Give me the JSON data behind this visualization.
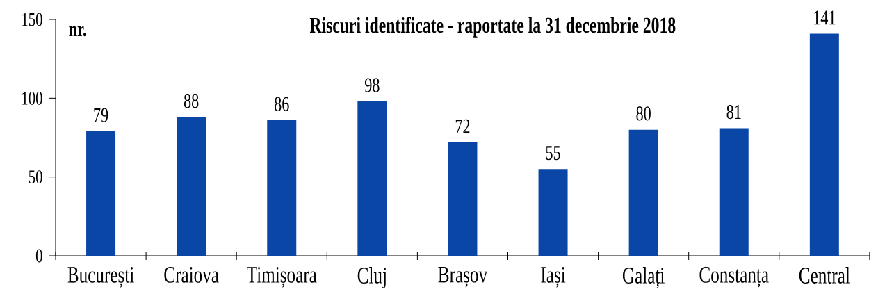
{
  "chart_data": {
    "type": "bar",
    "title": "Riscuri identificate - raportate la 31 decembrie 2018",
    "ylabel": "nr.",
    "categories": [
      "București",
      "Craiova",
      "Timișoara",
      "Cluj",
      "Brașov",
      "Iași",
      "Galați",
      "Constanța",
      "Central"
    ],
    "values": [
      79,
      88,
      86,
      98,
      72,
      55,
      80,
      81,
      141
    ],
    "color": "#0a46a5",
    "ylim": [
      0,
      150
    ],
    "yticks": [
      0,
      50,
      100,
      150
    ],
    "data_labels": true
  }
}
